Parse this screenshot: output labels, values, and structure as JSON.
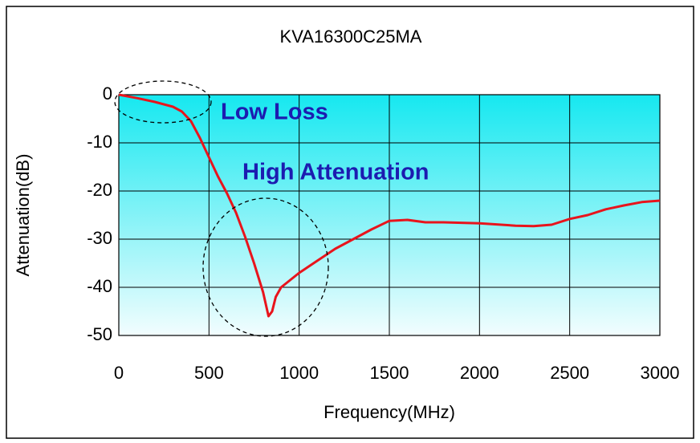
{
  "chart_data": {
    "type": "line",
    "title": "KVA16300C25MA",
    "x_label": "Frequency(MHz)",
    "y_label": "Attenuation(dB)",
    "annotations": [
      "Low Loss",
      "High Attenuation"
    ],
    "x": [
      0,
      100,
      200,
      300,
      350,
      400,
      450,
      500,
      550,
      600,
      650,
      700,
      750,
      800,
      830,
      850,
      870,
      900,
      1000,
      1100,
      1200,
      1300,
      1400,
      1500,
      1600,
      1700,
      1800,
      2000,
      2200,
      2300,
      2400,
      2500,
      2600,
      2700,
      2800,
      2900,
      3000
    ],
    "values": [
      0,
      -0.7,
      -1.5,
      -2.5,
      -3.5,
      -5.5,
      -9,
      -13,
      -17,
      -20.5,
      -24.5,
      -29.5,
      -35,
      -41,
      -46,
      -45,
      -42,
      -40,
      -37,
      -34.5,
      -32,
      -30,
      -28,
      -26.2,
      -26,
      -26.5,
      -26.5,
      -26.7,
      -27.2,
      -27.3,
      -27,
      -25.8,
      -25,
      -23.8,
      -23,
      -22.3,
      -22
    ],
    "color": "#e8141c",
    "xlim": [
      0,
      3000
    ],
    "xticks": [
      0,
      500,
      1000,
      1500,
      2000,
      2500,
      3000
    ],
    "ylim": [
      -50,
      0
    ],
    "yticks": [
      -50,
      -40,
      -30,
      -20,
      -10,
      0
    ],
    "grid": true
  }
}
